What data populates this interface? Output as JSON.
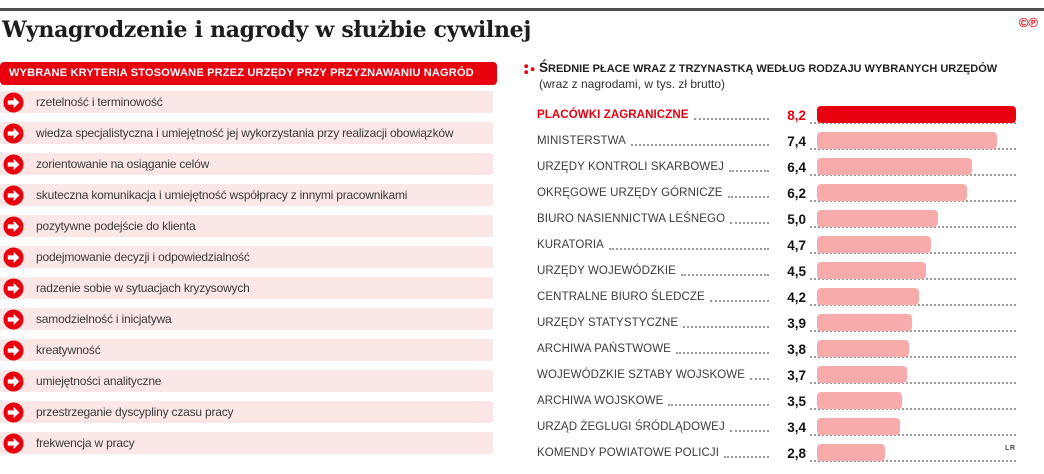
{
  "page": {
    "title": "Wynagrodzenie i nagrody w służbie cywilnej",
    "copyright_marks": "©℗",
    "colors": {
      "accent_red": "#e8000f",
      "bar_pink": "#f8abab",
      "row_band_pink": "#fbe7e5",
      "top_divider_gray": "#4e4e4e"
    }
  },
  "criteria": {
    "header": "WYBRANE KRYTERIA STOSOWANE PRZEZ URZĘDY PRZY PRZYZNAWANIU NAGRÓD",
    "items": [
      "rzetelność i terminowość",
      "wiedza specjalistyczna i umiejętność jej wykorzystania przy realizacji obowiązków",
      "zorientowanie na osiąganie celów",
      "skuteczna komunikacja i umiejętność współpracy z innymi pracownikami",
      "pozytywne podejście do klienta",
      "podejmowanie decyzji i odpowiedzialność",
      "radzenie sobie w sytuacjach kryzysowych",
      "samodzielność i inicjatywa",
      "kreatywność",
      "umiejętności analityczne",
      "przestrzeganie dyscypliny czasu pracy",
      "frekwencja w pracy"
    ]
  },
  "chart": {
    "title": "ŚREDNIE PŁACE WRAZ Z TRZYNASTKĄ WEDŁUG RODZAJU WYBRANYCH URZĘDÓW",
    "subtitle": "(wraz z nagrodami, w tys. zł brutto)",
    "credit": "LR"
  },
  "chart_data": {
    "type": "bar",
    "orientation": "horizontal",
    "title": "ŚREDNIE PŁACE WRAZ Z TRZYNASTKĄ WEDŁUG RODZAJU WYBRANYCH URZĘDÓW",
    "subtitle": "(wraz z nagrodami, w tys. zł brutto)",
    "unit": "tys. zł brutto",
    "categories": [
      "PLACÓWKI ZAGRANICZNE",
      "MINISTERSTWA",
      "URZĘDY KONTROLI SKARBOWEJ",
      "OKRĘGOWE URZĘDY GÓRNICZE",
      "BIURO NASIENNICTWA LEŚNEGO",
      "KURATORIA",
      "URZĘDY WOJEWÓDZKIE",
      "CENTRALNE BIURO ŚLEDCZE",
      "URZĘDY STATYSTYCZNE",
      "ARCHIWA PAŃSTWOWE",
      "WOJEWÓDZKIE SZTABY WOJSKOWE",
      "ARCHIWA WOJSKOWE",
      "URZĄD ŻEGLUGI ŚRÓDLĄDOWEJ",
      "KOMENDY POWIATOWE POLICJI"
    ],
    "values": [
      8.2,
      7.4,
      6.4,
      6.2,
      5.0,
      4.7,
      4.5,
      4.2,
      3.9,
      3.8,
      3.7,
      3.5,
      3.4,
      2.8
    ],
    "value_labels": [
      "8,2",
      "7,4",
      "6,4",
      "6,2",
      "5,0",
      "4,7",
      "4,5",
      "4,2",
      "3,9",
      "3,8",
      "3,7",
      "3,5",
      "3,4",
      "2,8"
    ],
    "highlight_index": 0,
    "xlim": [
      0,
      8.2
    ],
    "grid": false,
    "legend": false
  }
}
